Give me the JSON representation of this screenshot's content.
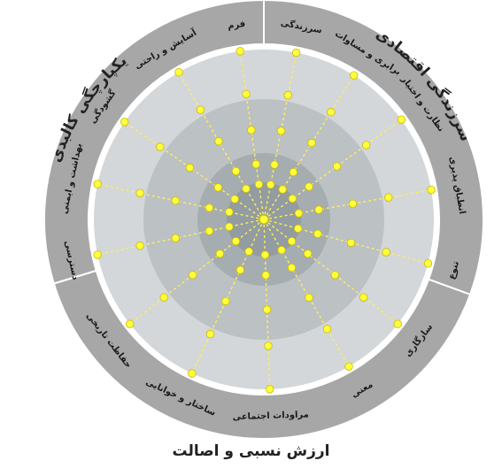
{
  "diagram": {
    "groups": [
      {
        "id": "economic",
        "title": "سرزندگی اقتصادی",
        "start_deg": 0,
        "end_deg": 110
      },
      {
        "id": "relative",
        "title": "ارزش نسبی و اصالت",
        "start_deg": 110,
        "end_deg": 253
      },
      {
        "id": "physical",
        "title": "یکپارچگی کالبدی",
        "start_deg": 253,
        "end_deg": 360
      }
    ],
    "sectors": [
      {
        "label": "سرزندگی",
        "angle": 11
      },
      {
        "label": "برابری و مساوات",
        "angle": 32
      },
      {
        "label": "نظارت و اختیار",
        "angle": 54
      },
      {
        "label": "انطباق پذیری",
        "angle": 80
      },
      {
        "label": "تنوع",
        "angle": 105
      },
      {
        "label": "سازگاری",
        "angle": 128
      },
      {
        "label": "معنی",
        "angle": 150
      },
      {
        "label": "مراودات اجتماعی",
        "angle": 178
      },
      {
        "label": "ساختار و خوانایی",
        "angle": 205
      },
      {
        "label": "حفاظت تاریخی",
        "angle": 232
      },
      {
        "label": "دسترسی",
        "angle": 258
      },
      {
        "label": "بهداشت و ایمنی",
        "angle": 282
      },
      {
        "label": "گشودگی",
        "angle": 305
      },
      {
        "label": "آسایش و راحتی",
        "angle": 330
      },
      {
        "label": "فرم",
        "angle": 352
      }
    ],
    "caption": "ارزش نسبی و اصالت",
    "colors": {
      "outer_band": "#a7a7a7",
      "ring_1": "#d3d7d9",
      "ring_2": "#bcc1c4",
      "ring_3": "#a6adb1",
      "core": "#939ca1",
      "spoke": "#ffef5a",
      "node": "#ffff3c",
      "node_stroke": "#c9b800"
    }
  }
}
